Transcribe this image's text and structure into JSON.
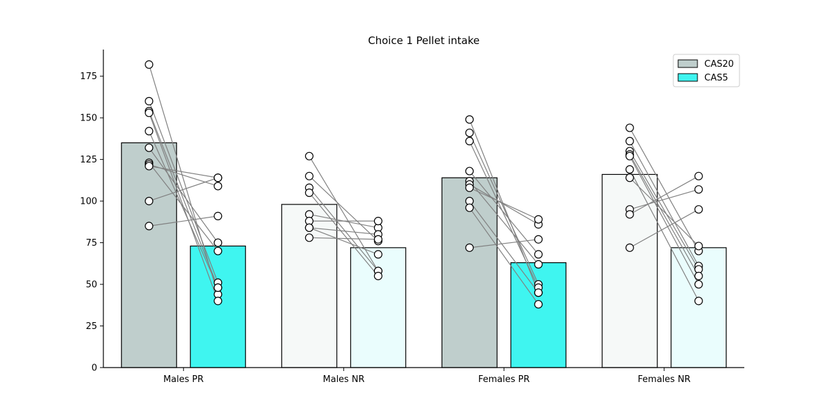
{
  "chart_data": {
    "type": "bar",
    "title": "Choice  1 Pellet intake",
    "xlabel": "",
    "ylabel": "",
    "ylim": [
      0,
      191
    ],
    "yticks": [
      0,
      25,
      50,
      75,
      100,
      125,
      150,
      175
    ],
    "categories": [
      "Males PR",
      "Males NR",
      "Females PR",
      "Females NR"
    ],
    "legend": {
      "placement": "top-right",
      "entries": [
        {
          "name": "CAS20",
          "color": "#bfcecc"
        },
        {
          "name": "CAS5",
          "color": "#3ff5f0"
        }
      ]
    },
    "series": [
      {
        "name": "CAS20",
        "values": [
          135,
          98,
          114,
          116
        ]
      },
      {
        "name": "CAS5",
        "values": [
          73,
          72,
          63,
          72
        ]
      }
    ],
    "bar_colors": [
      [
        "#bfcecc",
        "#3ff5f0"
      ],
      [
        "#f6f9f8",
        "#eafdfd"
      ],
      [
        "#bfcecc",
        "#3ff5f0"
      ],
      [
        "#f6f9f8",
        "#eafdfd"
      ]
    ],
    "paired_points": [
      [
        [
          182,
          44
        ],
        [
          160,
          51
        ],
        [
          154,
          48
        ],
        [
          153,
          40
        ],
        [
          142,
          48
        ],
        [
          132,
          75
        ],
        [
          123,
          70
        ],
        [
          122,
          109
        ],
        [
          121,
          114
        ],
        [
          100,
          114
        ],
        [
          85,
          91
        ]
      ],
      [
        [
          127,
          58
        ],
        [
          115,
          76
        ],
        [
          108,
          58
        ],
        [
          105,
          55
        ],
        [
          92,
          84
        ],
        [
          88,
          88
        ],
        [
          84,
          80
        ],
        [
          84,
          68
        ],
        [
          78,
          77
        ]
      ],
      [
        [
          149,
          45
        ],
        [
          141,
          50
        ],
        [
          136,
          48
        ],
        [
          118,
          68
        ],
        [
          112,
          62
        ],
        [
          110,
          86
        ],
        [
          108,
          89
        ],
        [
          100,
          45
        ],
        [
          96,
          38
        ],
        [
          72,
          77
        ]
      ],
      [
        [
          144,
          70
        ],
        [
          136,
          61
        ],
        [
          130,
          59
        ],
        [
          128,
          55
        ],
        [
          127,
          50
        ],
        [
          119,
          40
        ],
        [
          114,
          73
        ],
        [
          95,
          107
        ],
        [
          92,
          115
        ],
        [
          72,
          95
        ]
      ]
    ],
    "line_color": "#808080",
    "marker_fill": "#ffffff",
    "marker_edge": "#000000"
  }
}
